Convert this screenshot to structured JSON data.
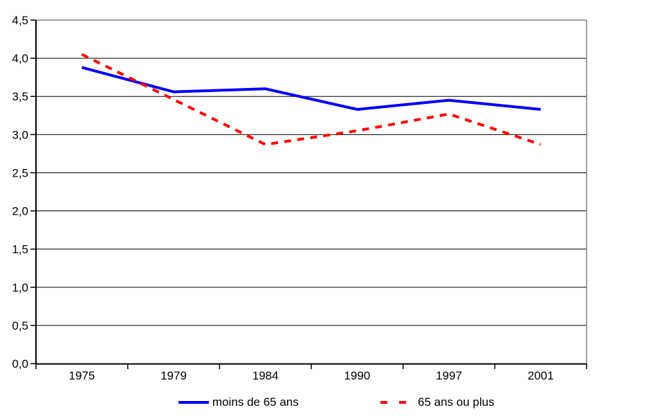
{
  "chart_data": {
    "type": "line",
    "title": "",
    "xlabel": "",
    "ylabel": "",
    "categories": [
      "1975",
      "1979",
      "1984",
      "1990",
      "1997",
      "2001"
    ],
    "series": [
      {
        "name": "moins de 65 ans",
        "color": "#0000FF",
        "style": "solid",
        "values": [
          3.88,
          3.56,
          3.6,
          3.33,
          3.45,
          3.33
        ]
      },
      {
        "name": "65 ans ou plus",
        "color": "#FF0000",
        "style": "dashed",
        "values": [
          4.05,
          3.46,
          2.87,
          3.05,
          3.27,
          2.87
        ]
      }
    ],
    "ylim": [
      0,
      4.5
    ],
    "ytick_step": 0.5,
    "ytick_labels": [
      "0,0",
      "0,5",
      "1,0",
      "1,5",
      "2,0",
      "2,5",
      "3,0",
      "3,5",
      "4,0",
      "4,5"
    ],
    "grid": true,
    "legend_position": "bottom",
    "colors": {
      "grid": "#000000",
      "axis": "#000000",
      "plot_border": "#808080",
      "text": "#000000",
      "background": "#FFFFFF"
    }
  }
}
